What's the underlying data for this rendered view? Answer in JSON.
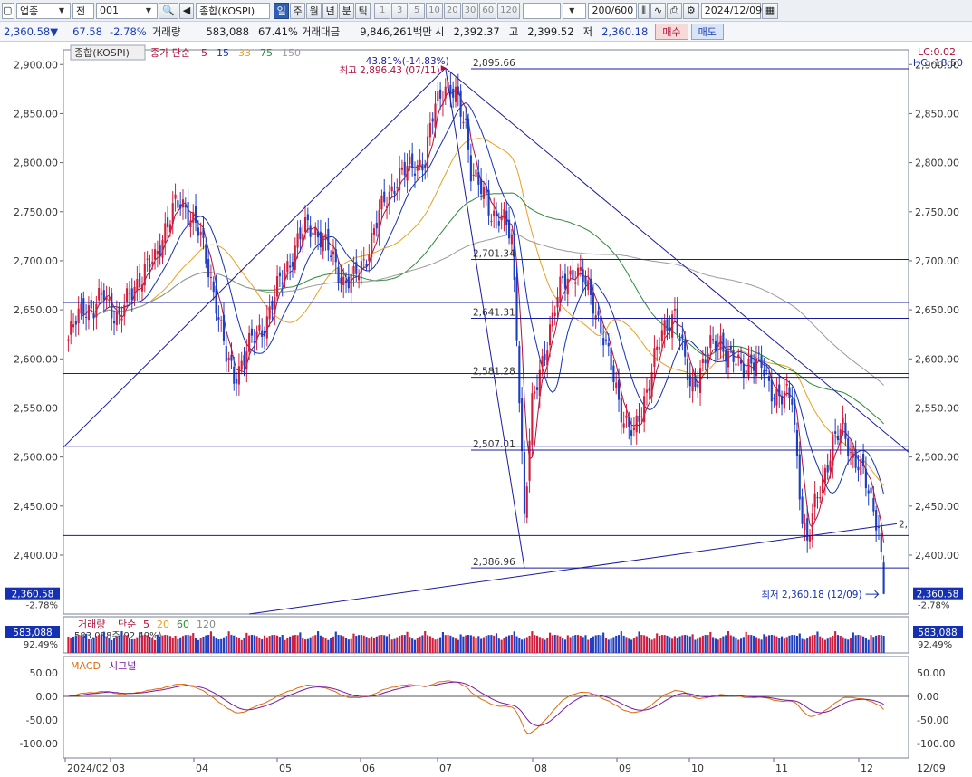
{
  "toolbar": {
    "market": "업종",
    "mode": "전",
    "code": "001",
    "name": "종합(KOSPI)",
    "periods": [
      "일",
      "주",
      "월",
      "년",
      "분",
      "틱"
    ],
    "active_period": "일",
    "minutes": [
      "1",
      "3",
      "5",
      "10",
      "20",
      "30",
      "60",
      "120"
    ],
    "count": "200/600",
    "date": "2024/12/09"
  },
  "info": {
    "price": "2,360.58",
    "change_arrow": "▼",
    "change": "67.58",
    "change_pct": "-2.78%",
    "volume_label": "거래량",
    "volume": "583,088",
    "volume_ratio": "67.41%",
    "amount_label": "거래대금",
    "amount": "9,846,261백만",
    "open_label": "시",
    "open": "2,392.37",
    "high_label": "고",
    "high": "2,399.52",
    "low_label": "저",
    "low": "2,360.18",
    "buy_label": "매수",
    "sell_label": "매도"
  },
  "legend": {
    "title": "종합(KOSPI)",
    "ma_label": "종가 단순",
    "ma_periods": [
      "5",
      "15",
      "33",
      "75",
      "150"
    ],
    "ma_colors": [
      "#b0103a",
      "#1530b0",
      "#e8a020",
      "#2c8a3c",
      "#9a9a9a"
    ]
  },
  "top_right": {
    "lc": "LC:0.02",
    "hc": "HC:-18.50"
  },
  "annotations": {
    "high_note": "최고 2,896.43 (07/11)",
    "high_pct": "43.81%(-14.83%)",
    "low_note": "최저 2,360.18 (12/09)",
    "fib_labels": [
      "2,895.66",
      "2,701.34",
      "2,641.31",
      "2,581.28",
      "2,507.01",
      "2,386.96"
    ],
    "trend_tail": "2,"
  },
  "price_axis": {
    "ticks": [
      "2,900.00",
      "2,850.00",
      "2,800.00",
      "2,750.00",
      "2,700.00",
      "2,650.00",
      "2,600.00",
      "2,550.00",
      "2,500.00",
      "2,450.00",
      "2,400.00"
    ],
    "current": "2,360.58",
    "current_pct": "-2.78%"
  },
  "volume_panel": {
    "legend_label": "거래량",
    "legend_ma": "단순",
    "ma_periods": [
      "5",
      "20",
      "60",
      "120"
    ],
    "ma_colors": [
      "#b0103a",
      "#e8a020",
      "#2c8a3c",
      "#888888"
    ],
    "current": "583,088",
    "current_pct": "92.49%",
    "caption": "583,088주(92.49%)"
  },
  "macd_panel": {
    "label": "MACD",
    "signal_label": "시그널",
    "ticks": [
      "50.00",
      "0.00",
      "-50.00",
      "-100.00"
    ]
  },
  "x_axis": {
    "labels": [
      "2024/02",
      "03",
      "04",
      "05",
      "06",
      "07",
      "08",
      "09",
      "10",
      "11",
      "12",
      "12/09"
    ]
  },
  "chart_data": {
    "type": "candlestick",
    "title": "종합(KOSPI)",
    "ylim": [
      2340,
      2915
    ],
    "months": [
      "2024/02",
      "03",
      "04",
      "05",
      "06",
      "07",
      "08",
      "09",
      "10",
      "11",
      "12"
    ],
    "anchors": [
      [
        0,
        2620
      ],
      [
        6,
        2655
      ],
      [
        10,
        2650
      ],
      [
        14,
        2665
      ],
      [
        20,
        2640
      ],
      [
        26,
        2675
      ],
      [
        30,
        2690
      ],
      [
        34,
        2700
      ],
      [
        38,
        2735
      ],
      [
        42,
        2755
      ],
      [
        46,
        2755
      ],
      [
        50,
        2740
      ],
      [
        54,
        2700
      ],
      [
        58,
        2660
      ],
      [
        62,
        2600
      ],
      [
        65,
        2580
      ],
      [
        70,
        2610
      ],
      [
        76,
        2630
      ],
      [
        82,
        2670
      ],
      [
        86,
        2695
      ],
      [
        90,
        2720
      ],
      [
        94,
        2735
      ],
      [
        98,
        2730
      ],
      [
        104,
        2700
      ],
      [
        108,
        2680
      ],
      [
        112,
        2680
      ],
      [
        116,
        2700
      ],
      [
        120,
        2730
      ],
      [
        124,
        2760
      ],
      [
        128,
        2780
      ],
      [
        132,
        2790
      ],
      [
        136,
        2800
      ],
      [
        140,
        2800
      ],
      [
        144,
        2860
      ],
      [
        148,
        2880
      ],
      [
        152,
        2865
      ],
      [
        156,
        2840
      ],
      [
        158,
        2795
      ],
      [
        162,
        2770
      ],
      [
        166,
        2750
      ],
      [
        170,
        2745
      ],
      [
        174,
        2720
      ],
      [
        176,
        2630
      ],
      [
        179,
        2440
      ],
      [
        182,
        2550
      ],
      [
        186,
        2600
      ],
      [
        190,
        2640
      ],
      [
        194,
        2680
      ],
      [
        198,
        2690
      ],
      [
        202,
        2680
      ],
      [
        206,
        2660
      ],
      [
        210,
        2620
      ],
      [
        214,
        2580
      ],
      [
        218,
        2540
      ],
      [
        222,
        2520
      ],
      [
        226,
        2560
      ],
      [
        230,
        2600
      ],
      [
        234,
        2630
      ],
      [
        238,
        2650
      ],
      [
        240,
        2620
      ],
      [
        244,
        2570
      ],
      [
        248,
        2590
      ],
      [
        252,
        2610
      ],
      [
        256,
        2620
      ],
      [
        260,
        2600
      ],
      [
        264,
        2590
      ],
      [
        268,
        2600
      ],
      [
        272,
        2590
      ],
      [
        276,
        2570
      ],
      [
        280,
        2560
      ],
      [
        284,
        2560
      ],
      [
        286,
        2500
      ],
      [
        288,
        2440
      ],
      [
        290,
        2410
      ],
      [
        293,
        2450
      ],
      [
        296,
        2480
      ],
      [
        300,
        2510
      ],
      [
        304,
        2530
      ],
      [
        308,
        2500
      ],
      [
        312,
        2480
      ],
      [
        316,
        2450
      ],
      [
        318,
        2430
      ],
      [
        320,
        2360
      ]
    ],
    "fib_levels": [
      2895.66,
      2701.34,
      2641.31,
      2581.28,
      2507.01,
      2386.96
    ],
    "extra_levels": [
      2657.5,
      2585,
      2511,
      2420
    ],
    "high": {
      "value": 2896.43,
      "date": "07/11"
    },
    "low": {
      "value": 2360.18,
      "date": "12/09"
    },
    "last": {
      "open": 2392.37,
      "high": 2399.52,
      "low": 2360.18,
      "close": 2360.58
    }
  }
}
